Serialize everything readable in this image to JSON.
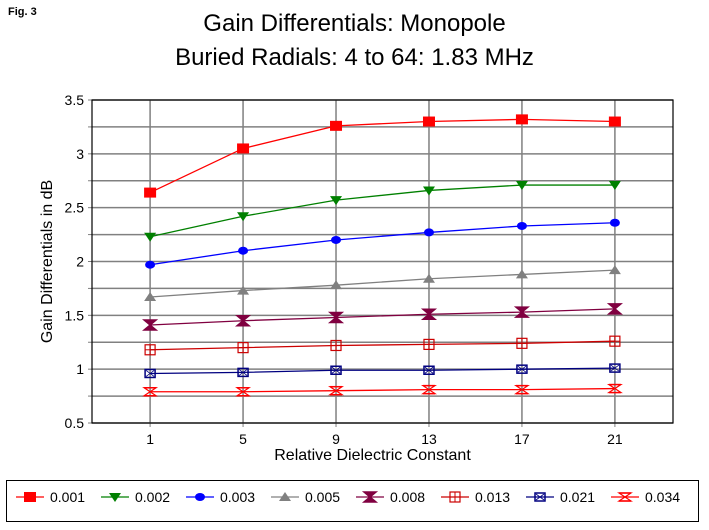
{
  "figure_label": "Fig. 3",
  "chart_data": {
    "type": "line",
    "title": "Gain Differentials: Monopole",
    "subtitle": "Buried Radials:  4 to 64: 1.83 MHz",
    "xlabel": "Relative Dielectric Constant",
    "ylabel": "Gain Differentials in dB",
    "x": [
      1,
      5,
      9,
      13,
      17,
      21
    ],
    "x_tick_labels": [
      "1",
      "5",
      "9",
      "13",
      "17",
      "21"
    ],
    "ylim": [
      0.5,
      3.5
    ],
    "y_ticks": [
      0.5,
      1,
      1.5,
      2,
      2.5,
      3,
      3.5
    ],
    "y_tick_labels": [
      "0.5",
      "1",
      "1.5",
      "2",
      "2.5",
      "3",
      "3.5"
    ],
    "y_minor_step": 0.25,
    "grid": true,
    "legend_position": "bottom",
    "series": [
      {
        "name": "0.001",
        "color": "#ff0000",
        "marker": "square",
        "values": [
          2.64,
          3.05,
          3.26,
          3.3,
          3.32,
          3.3
        ]
      },
      {
        "name": "0.002",
        "color": "#008000",
        "marker": "triangle-down",
        "values": [
          2.23,
          2.42,
          2.57,
          2.66,
          2.71,
          2.71
        ]
      },
      {
        "name": "0.003",
        "color": "#0000ff",
        "marker": "circle",
        "values": [
          1.97,
          2.1,
          2.2,
          2.27,
          2.33,
          2.36
        ]
      },
      {
        "name": "0.005",
        "color": "#808080",
        "marker": "triangle-up",
        "values": [
          1.67,
          1.73,
          1.78,
          1.84,
          1.88,
          1.92
        ]
      },
      {
        "name": "0.008",
        "color": "#800040",
        "marker": "hourglass-filled",
        "values": [
          1.41,
          1.45,
          1.48,
          1.51,
          1.53,
          1.56
        ]
      },
      {
        "name": "0.013",
        "color": "#cc0000",
        "marker": "square-plus",
        "values": [
          1.18,
          1.2,
          1.22,
          1.23,
          1.24,
          1.26
        ]
      },
      {
        "name": "0.021",
        "color": "#000080",
        "marker": "square-x",
        "values": [
          0.96,
          0.97,
          0.99,
          0.99,
          1.0,
          1.01
        ]
      },
      {
        "name": "0.034",
        "color": "#ff0000",
        "marker": "hourglass-open",
        "values": [
          0.79,
          0.79,
          0.8,
          0.81,
          0.81,
          0.82
        ]
      }
    ]
  }
}
